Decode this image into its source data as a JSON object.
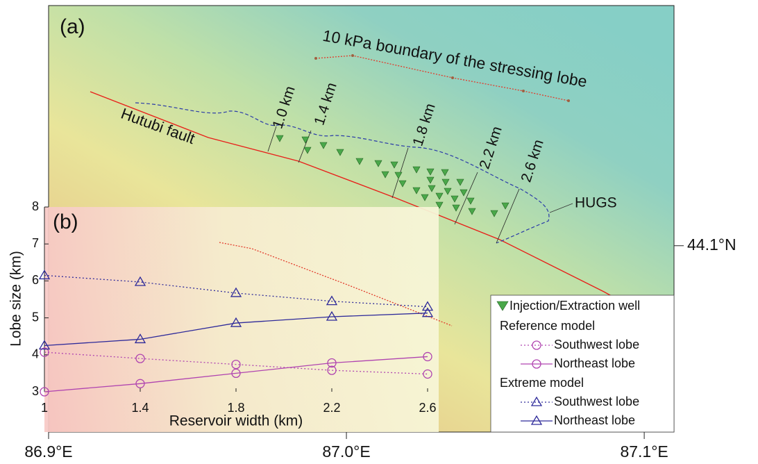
{
  "map": {
    "panel_label": "(a)",
    "boundary_label": "10 kPa boundary of the stressing lobe",
    "fault_label": "Hutubi fault",
    "width_labels": [
      "1.0 km",
      "1.4 km",
      "1.8 km",
      "2.2 km",
      "2.6 km"
    ],
    "site_label": "HUGS",
    "well_legend": "Injection/Extraction well",
    "xlim": [
      86.9,
      87.11
    ],
    "ylim": [
      44.055,
      44.158
    ],
    "xticks": [
      {
        "value": 86.9,
        "label": "86.9°E"
      },
      {
        "value": 87.0,
        "label": "87.0°E"
      },
      {
        "value": 87.1,
        "label": "87.1°E"
      }
    ],
    "yticks": [
      {
        "value": 44.1,
        "label": "44.1°N"
      }
    ]
  },
  "chart_data": {
    "type": "line",
    "title": "(b)",
    "xlabel": "Reservoir width (km)",
    "ylabel": "Lobe size (km)",
    "x": [
      1,
      1.4,
      1.8,
      2.2,
      2.6
    ],
    "xlim": [
      1,
      2.6
    ],
    "ylim": [
      3,
      8
    ],
    "xticks": [
      1,
      1.4,
      1.8,
      2.2,
      2.6
    ],
    "yticks": [
      3,
      4,
      5,
      6,
      7,
      8
    ],
    "legend": "lower right",
    "series_groups": [
      {
        "name": "Reference model",
        "series": [
          {
            "name": "Southwest lobe",
            "color": "#b044b0",
            "style": "dotted",
            "marker": "circle",
            "values": [
              4.07,
              3.9,
              3.74,
              3.58,
              3.48
            ]
          },
          {
            "name": "Northeast lobe",
            "color": "#b044b0",
            "style": "solid",
            "marker": "circle",
            "values": [
              3.0,
              3.22,
              3.5,
              3.78,
              3.95
            ]
          }
        ]
      },
      {
        "name": "Extreme model",
        "series": [
          {
            "name": "Southwest lobe",
            "color": "#2e2a9a",
            "style": "dotted",
            "marker": "triangle",
            "values": [
              6.15,
              5.97,
              5.67,
              5.45,
              5.3
            ]
          },
          {
            "name": "Northeast lobe",
            "color": "#2e2a9a",
            "style": "solid",
            "marker": "triangle",
            "values": [
              4.25,
              4.42,
              4.86,
              5.03,
              5.13
            ]
          }
        ]
      }
    ]
  }
}
